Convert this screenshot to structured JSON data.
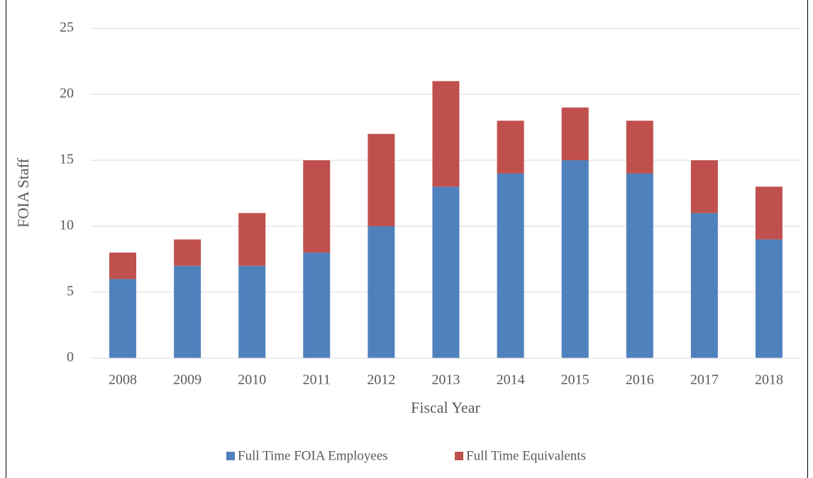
{
  "chart_data": {
    "type": "stacked_bar",
    "x_label": "Fiscal Year",
    "y_label": "FOIA Staff",
    "categories": [
      "2008",
      "2009",
      "2010",
      "2011",
      "2012",
      "2013",
      "2014",
      "2015",
      "2016",
      "2017",
      "2018"
    ],
    "series": [
      {
        "name": "Full Time FOIA Employees",
        "color": "#4f81bd",
        "values": [
          6,
          7,
          7,
          8,
          10,
          13,
          14,
          15,
          14,
          11,
          9
        ]
      },
      {
        "name": "Full Time Equivalents",
        "color": "#c0504d",
        "values": [
          2,
          2,
          4,
          7,
          7,
          8,
          4,
          4,
          4,
          4,
          4
        ]
      }
    ],
    "ylim": [
      0,
      25
    ],
    "yticks": [
      0,
      5,
      10,
      15,
      20,
      25
    ],
    "grid": true,
    "legend": "bottom"
  }
}
